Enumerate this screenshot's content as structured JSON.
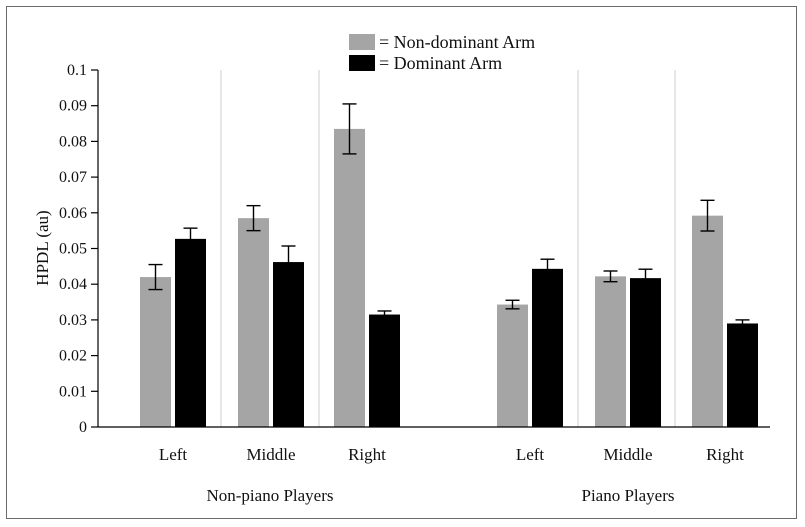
{
  "chart_data": {
    "type": "bar",
    "ylabel": "HPDL (au)",
    "ylim": [
      0,
      0.1
    ],
    "y_ticks": [
      "0",
      "0.01",
      "0.02",
      "0.03",
      "0.04",
      "0.05",
      "0.06",
      "0.07",
      "0.08",
      "0.09",
      "0.1"
    ],
    "grid": "vertical separators between categories",
    "legend_position": "top-center",
    "groups": [
      {
        "label": "Non-piano Players",
        "categories": [
          "Left",
          "Middle",
          "Right"
        ],
        "series": [
          {
            "name": "= Non-dominant Arm",
            "color": "#a5a5a5",
            "values": [
              0.042,
              0.0585,
              0.0835
            ],
            "errors": [
              0.0035,
              0.0035,
              0.007
            ]
          },
          {
            "name": "= Dominant Arm",
            "color": "#000000",
            "values": [
              0.0527,
              0.0462,
              0.0315
            ],
            "errors": [
              0.003,
              0.0045,
              0.001
            ]
          }
        ]
      },
      {
        "label": "Piano Players",
        "categories": [
          "Left",
          "Middle",
          "Right"
        ],
        "series": [
          {
            "name": "= Non-dominant Arm",
            "color": "#a5a5a5",
            "values": [
              0.0343,
              0.0422,
              0.0592
            ],
            "errors": [
              0.0012,
              0.0015,
              0.0043
            ]
          },
          {
            "name": "= Dominant Arm",
            "color": "#000000",
            "values": [
              0.0443,
              0.0417,
              0.029
            ],
            "errors": [
              0.0027,
              0.0025,
              0.001
            ]
          }
        ]
      }
    ]
  }
}
